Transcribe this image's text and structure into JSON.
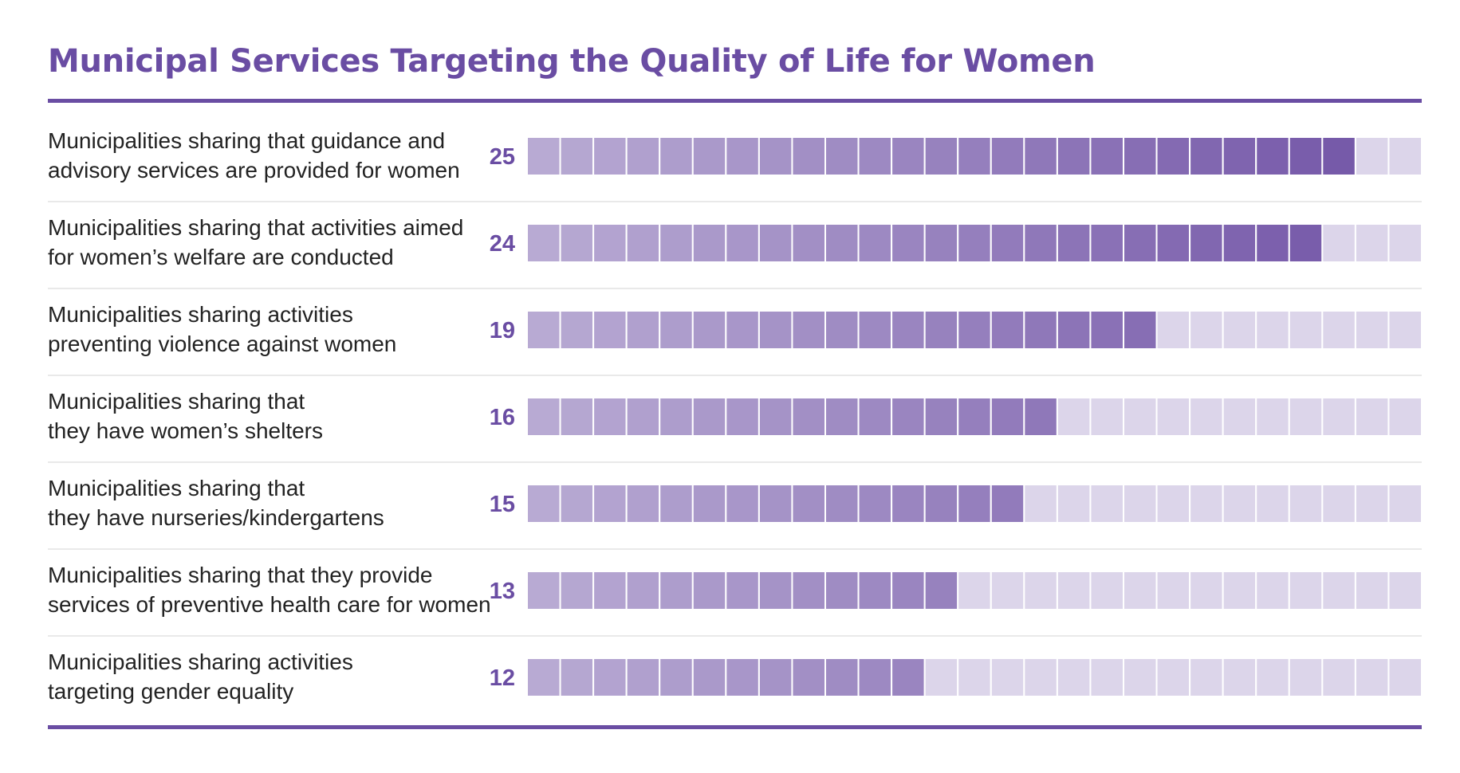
{
  "colors": {
    "accent": "#6a4da3",
    "filled_light": "#b8aad3",
    "filled_dark": "#7153a6",
    "empty": "#dcd5ea",
    "separator": "#e2e2e2"
  },
  "chart_data": {
    "type": "bar",
    "title": "Municipal Services Targeting the Quality of Life for Women",
    "max_squares": 27,
    "categories": [
      [
        "Municipalities sharing that guidance and",
        "advisory services are provided for women"
      ],
      [
        "Municipalities sharing that activities aimed",
        "for women’s welfare are conducted"
      ],
      [
        "Municipalities sharing activities",
        "preventing violence against women"
      ],
      [
        "Municipalities sharing that",
        "they have women’s shelters"
      ],
      [
        "Municipalities sharing that",
        "they have nurseries/kindergartens"
      ],
      [
        "Municipalities sharing that they provide",
        "services of preventive health care for women"
      ],
      [
        "Municipalities sharing activities",
        "targeting gender equality"
      ]
    ],
    "values": [
      25,
      24,
      19,
      16,
      15,
      13,
      12
    ],
    "value_labels": [
      "25",
      "24",
      "19",
      "16",
      "15",
      "13",
      "12"
    ]
  }
}
